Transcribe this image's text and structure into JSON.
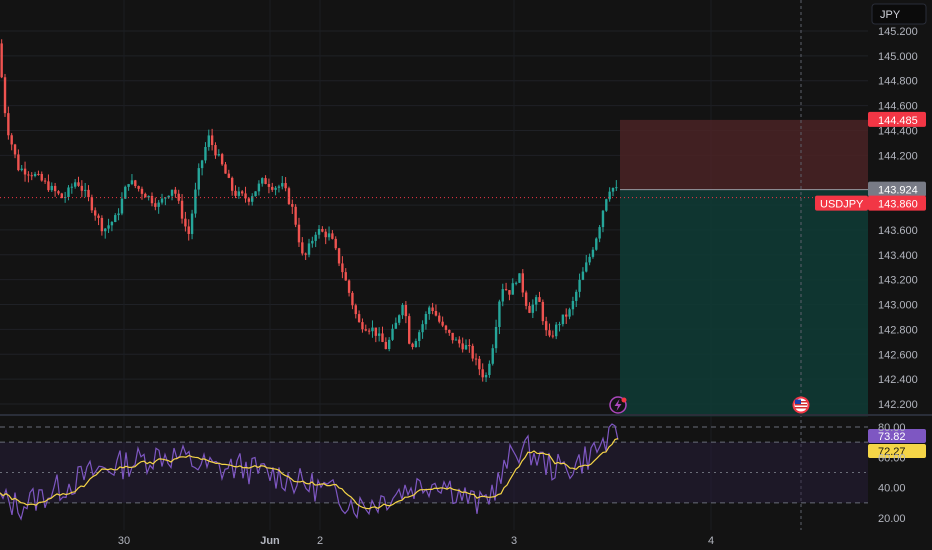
{
  "chart_data": [
    {
      "type": "candlestick",
      "symbol": "USDJPY",
      "currency": "JPY",
      "y_ticks": [
        "145.200",
        "145.000",
        "144.800",
        "144.600",
        "144.400",
        "144.200",
        "143.800",
        "143.600",
        "143.400",
        "143.200",
        "143.000",
        "142.800",
        "142.600",
        "142.400",
        "142.200"
      ],
      "ylim": [
        142.1,
        145.35
      ],
      "x_labels": [
        "30",
        "Jun",
        "2",
        "3",
        "4"
      ],
      "current_price": 143.86,
      "current_price_label": "143.860",
      "entry_price": 143.924,
      "entry_label": "143.924",
      "stop_price": 144.485,
      "stop_label": "144.485",
      "target_price": 142.1,
      "guide_points": [
        [
          0,
          145.1
        ],
        [
          8,
          144.45
        ],
        [
          20,
          144.1
        ],
        [
          35,
          144.05
        ],
        [
          50,
          143.95
        ],
        [
          65,
          143.85
        ],
        [
          78,
          144.0
        ],
        [
          90,
          143.85
        ],
        [
          105,
          143.6
        ],
        [
          118,
          143.7
        ],
        [
          130,
          144.0
        ],
        [
          145,
          143.9
        ],
        [
          160,
          143.8
        ],
        [
          175,
          143.95
        ],
        [
          190,
          143.55
        ],
        [
          200,
          144.05
        ],
        [
          210,
          144.35
        ],
        [
          222,
          144.15
        ],
        [
          235,
          143.9
        ],
        [
          250,
          143.85
        ],
        [
          265,
          144.0
        ],
        [
          275,
          143.95
        ],
        [
          285,
          143.95
        ],
        [
          295,
          143.75
        ],
        [
          305,
          143.35
        ],
        [
          318,
          143.6
        ],
        [
          332,
          143.55
        ],
        [
          345,
          143.25
        ],
        [
          360,
          142.85
        ],
        [
          375,
          142.8
        ],
        [
          388,
          142.65
        ],
        [
          398,
          142.85
        ],
        [
          405,
          143.05
        ],
        [
          412,
          142.65
        ],
        [
          422,
          142.8
        ],
        [
          432,
          143.0
        ],
        [
          445,
          142.8
        ],
        [
          458,
          142.7
        ],
        [
          470,
          142.65
        ],
        [
          480,
          142.5
        ],
        [
          487,
          142.4
        ],
        [
          495,
          142.7
        ],
        [
          503,
          143.15
        ],
        [
          512,
          143.1
        ],
        [
          520,
          143.25
        ],
        [
          530,
          142.95
        ],
        [
          540,
          143.05
        ],
        [
          550,
          142.7
        ],
        [
          560,
          142.85
        ],
        [
          572,
          142.95
        ],
        [
          582,
          143.2
        ],
        [
          592,
          143.4
        ],
        [
          600,
          143.6
        ],
        [
          607,
          143.85
        ],
        [
          612,
          143.95
        ],
        [
          618,
          143.92
        ]
      ],
      "candle_count": 185,
      "candle_end_x": 618,
      "events": [
        "lightning-icon",
        "us-flag-icon"
      ],
      "colors": {
        "up": "#26a69a",
        "down": "#ef5350",
        "stop_zone": "#4a2326",
        "target_zone": "#0f3a34",
        "price_tag": "#f23645",
        "entry_tag": "#787b86"
      }
    },
    {
      "type": "line",
      "indicator": "RSI",
      "y_ticks": [
        "80.00",
        "60.00",
        "40.00",
        "20.00"
      ],
      "ylim": [
        15,
        83
      ],
      "rsi_value": 73.82,
      "rsi_label": "73.82",
      "ma_value": 72.27,
      "ma_label": "72.27",
      "guide_points": [
        [
          0,
          32
        ],
        [
          20,
          28
        ],
        [
          40,
          34
        ],
        [
          60,
          40
        ],
        [
          80,
          46
        ],
        [
          100,
          52
        ],
        [
          120,
          55
        ],
        [
          140,
          58
        ],
        [
          160,
          62
        ],
        [
          180,
          60
        ],
        [
          200,
          55
        ],
        [
          220,
          52
        ],
        [
          240,
          54
        ],
        [
          260,
          50
        ],
        [
          280,
          48
        ],
        [
          300,
          43
        ],
        [
          320,
          40
        ],
        [
          340,
          34
        ],
        [
          360,
          28
        ],
        [
          380,
          32
        ],
        [
          400,
          38
        ],
        [
          420,
          42
        ],
        [
          440,
          45
        ],
        [
          460,
          36
        ],
        [
          480,
          28
        ],
        [
          500,
          45
        ],
        [
          515,
          66
        ],
        [
          530,
          64
        ],
        [
          545,
          56
        ],
        [
          560,
          52
        ],
        [
          575,
          55
        ],
        [
          590,
          62
        ],
        [
          605,
          70
        ],
        [
          618,
          74
        ]
      ],
      "colors": {
        "rsi": "#7e57c2",
        "ma": "#f5d547",
        "band": "#2a2040"
      }
    }
  ]
}
